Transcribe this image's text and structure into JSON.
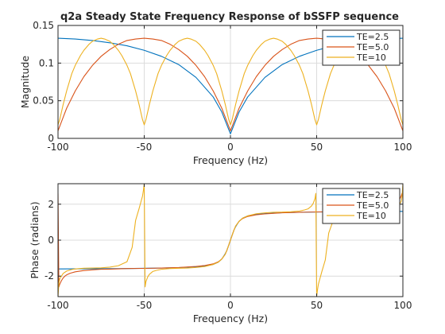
{
  "chart_data": [
    {
      "type": "line",
      "title": "q2a Steady State Frequency Response of bSSFP sequence",
      "xlabel": "Frequency (Hz)",
      "ylabel": "Magnitude",
      "xlim": [
        -100,
        100
      ],
      "ylim": [
        0,
        0.15
      ],
      "xticks": [
        -100,
        -50,
        0,
        50,
        100
      ],
      "yticks": [
        0,
        0.05,
        0.1,
        0.15
      ],
      "ytick_labels": [
        "0",
        "0.05",
        "0.1",
        "0.15"
      ],
      "grid": true,
      "legend_position": "top-right",
      "series": [
        {
          "name": "TE=2.5",
          "color": "#0072bd",
          "x": [
            -100,
            -90,
            -80,
            -70,
            -60,
            -50,
            -40,
            -30,
            -20,
            -10,
            -5,
            0,
            5,
            10,
            20,
            30,
            40,
            50,
            60,
            70,
            80,
            90,
            100
          ],
          "values": [
            0.133,
            0.132,
            0.13,
            0.127,
            0.123,
            0.117,
            0.109,
            0.098,
            0.081,
            0.055,
            0.035,
            0.006,
            0.035,
            0.055,
            0.081,
            0.098,
            0.109,
            0.117,
            0.123,
            0.127,
            0.13,
            0.132,
            0.133
          ]
        },
        {
          "name": "TE=5.0",
          "color": "#d95319",
          "x": [
            -100,
            -97,
            -95,
            -90,
            -85,
            -80,
            -75,
            -70,
            -65,
            -60,
            -55,
            -50,
            -45,
            -40,
            -35,
            -30,
            -25,
            -20,
            -15,
            -10,
            -5,
            -2,
            0,
            2,
            5,
            10,
            15,
            20,
            25,
            30,
            35,
            40,
            45,
            50,
            55,
            60,
            65,
            70,
            75,
            80,
            85,
            90,
            95,
            97,
            100
          ],
          "values": [
            0.01,
            0.028,
            0.04,
            0.063,
            0.082,
            0.097,
            0.109,
            0.118,
            0.125,
            0.13,
            0.132,
            0.133,
            0.132,
            0.13,
            0.125,
            0.118,
            0.109,
            0.097,
            0.082,
            0.063,
            0.04,
            0.022,
            0.01,
            0.022,
            0.04,
            0.063,
            0.082,
            0.097,
            0.109,
            0.118,
            0.125,
            0.13,
            0.132,
            0.133,
            0.132,
            0.13,
            0.125,
            0.118,
            0.109,
            0.097,
            0.082,
            0.063,
            0.04,
            0.028,
            0.01
          ]
        },
        {
          "name": "TE=10",
          "color": "#edb120",
          "x": [
            -100,
            -99,
            -97,
            -95,
            -92,
            -90,
            -87,
            -85,
            -82,
            -80,
            -77,
            -75,
            -73,
            -70,
            -68,
            -65,
            -63,
            -60,
            -58,
            -55,
            -53,
            -51,
            -50,
            -49,
            -47,
            -45,
            -42,
            -40,
            -37,
            -35,
            -32,
            -30,
            -27,
            -25,
            -23,
            -20,
            -18,
            -15,
            -13,
            -10,
            -8,
            -5,
            -3,
            -1,
            0,
            1,
            3,
            5,
            8,
            10,
            13,
            15,
            18,
            20,
            23,
            25,
            27,
            30,
            32,
            35,
            37,
            40,
            42,
            45,
            47,
            49,
            50,
            51,
            53,
            55,
            58,
            60,
            63,
            65,
            68,
            70,
            73,
            75,
            77,
            80,
            82,
            85,
            87,
            90,
            92,
            95,
            97,
            99,
            100
          ],
          "values": [
            0.018,
            0.025,
            0.045,
            0.063,
            0.086,
            0.097,
            0.11,
            0.117,
            0.125,
            0.129,
            0.132,
            0.133,
            0.132,
            0.129,
            0.125,
            0.117,
            0.11,
            0.097,
            0.086,
            0.063,
            0.045,
            0.025,
            0.018,
            0.025,
            0.045,
            0.063,
            0.086,
            0.097,
            0.11,
            0.117,
            0.125,
            0.129,
            0.132,
            0.133,
            0.132,
            0.129,
            0.125,
            0.117,
            0.11,
            0.097,
            0.086,
            0.063,
            0.045,
            0.025,
            0.018,
            0.025,
            0.045,
            0.063,
            0.086,
            0.097,
            0.11,
            0.117,
            0.125,
            0.129,
            0.132,
            0.133,
            0.132,
            0.129,
            0.125,
            0.117,
            0.11,
            0.097,
            0.086,
            0.063,
            0.045,
            0.025,
            0.018,
            0.025,
            0.045,
            0.063,
            0.086,
            0.097,
            0.11,
            0.117,
            0.125,
            0.129,
            0.132,
            0.133,
            0.132,
            0.129,
            0.125,
            0.117,
            0.11,
            0.097,
            0.086,
            0.063,
            0.045,
            0.025,
            0.018
          ]
        }
      ]
    },
    {
      "type": "line",
      "title": "",
      "xlabel": "Frequency (Hz)",
      "ylabel": "Phase (radians)",
      "xlim": [
        -100,
        100
      ],
      "ylim": [
        -3.14,
        3.14
      ],
      "xticks": [
        -100,
        -50,
        0,
        50,
        100
      ],
      "yticks": [
        -2,
        0,
        2
      ],
      "ytick_labels": [
        "-2",
        "0",
        "2"
      ],
      "grid": true,
      "legend_position": "top-right",
      "series": [
        {
          "name": "TE=2.5",
          "color": "#0072bd",
          "x": [
            -100,
            -80,
            -60,
            -40,
            -30,
            -20,
            -15,
            -10,
            -7,
            -5,
            -3,
            -2,
            -1,
            0,
            1,
            2,
            3,
            5,
            7,
            10,
            15,
            20,
            30,
            40,
            60,
            80,
            100
          ],
          "values": [
            -1.6,
            -1.59,
            -1.58,
            -1.55,
            -1.53,
            -1.48,
            -1.44,
            -1.35,
            -1.22,
            -1.05,
            -0.75,
            -0.55,
            -0.28,
            0,
            0.28,
            0.55,
            0.75,
            1.05,
            1.22,
            1.35,
            1.44,
            1.48,
            1.53,
            1.55,
            1.58,
            1.59,
            1.6
          ]
        },
        {
          "name": "TE=5.0",
          "color": "#d95319",
          "x": [
            -100,
            -99.5,
            -99,
            -98,
            -97,
            -96,
            -95,
            -93,
            -90,
            -85,
            -80,
            -75,
            -70,
            -60,
            -50,
            -40,
            -30,
            -20,
            -15,
            -10,
            -7,
            -5,
            -3,
            -2,
            -1,
            0,
            1,
            2,
            3,
            5,
            7,
            10,
            15,
            20,
            30,
            40,
            50,
            60,
            70,
            75,
            80,
            85,
            90,
            93,
            95,
            96,
            97,
            98,
            99,
            99.5,
            100
          ],
          "values": [
            2.6,
            -2.6,
            -2.45,
            -2.25,
            -2.1,
            -2.0,
            -1.93,
            -1.84,
            -1.76,
            -1.69,
            -1.65,
            -1.62,
            -1.61,
            -1.58,
            -1.57,
            -1.55,
            -1.52,
            -1.46,
            -1.41,
            -1.32,
            -1.2,
            -1.05,
            -0.78,
            -0.55,
            -0.28,
            0,
            0.28,
            0.55,
            0.78,
            1.05,
            1.2,
            1.32,
            1.41,
            1.46,
            1.52,
            1.55,
            1.57,
            1.58,
            1.61,
            1.62,
            1.65,
            1.69,
            1.76,
            1.84,
            1.93,
            2.0,
            2.1,
            2.25,
            2.45,
            2.6,
            2.6
          ]
        },
        {
          "name": "TE=10",
          "color": "#edb120",
          "x": [
            -100,
            -99.5,
            -99,
            -97,
            -95,
            -92,
            -90,
            -85,
            -80,
            -75,
            -70,
            -65,
            -60,
            -57,
            -55,
            -53,
            -52,
            -51,
            -50.5,
            -50,
            -49.5,
            -49,
            -48,
            -47,
            -45,
            -43,
            -40,
            -35,
            -30,
            -25,
            -20,
            -15,
            -10,
            -7,
            -5,
            -3,
            -2,
            -1,
            0,
            1,
            2,
            3,
            5,
            7,
            10,
            15,
            20,
            25,
            30,
            35,
            40,
            43,
            45,
            47,
            48,
            49,
            49.5,
            50,
            50.5,
            51,
            52,
            53,
            55,
            57,
            60,
            65,
            70,
            75,
            80,
            85,
            90,
            92,
            95,
            97,
            99,
            99.5,
            100
          ],
          "values": [
            -3.14,
            -2.4,
            -2.15,
            -1.85,
            -1.72,
            -1.63,
            -1.6,
            -1.56,
            -1.55,
            -1.54,
            -1.5,
            -1.42,
            -1.2,
            -0.4,
            1.1,
            1.75,
            2.1,
            2.45,
            2.75,
            3.14,
            -2.6,
            -2.3,
            -2.05,
            -1.9,
            -1.74,
            -1.68,
            -1.62,
            -1.58,
            -1.56,
            -1.55,
            -1.52,
            -1.47,
            -1.35,
            -1.22,
            -1.05,
            -0.78,
            -0.55,
            -0.28,
            0,
            0.28,
            0.55,
            0.78,
            1.05,
            1.22,
            1.35,
            1.47,
            1.52,
            1.55,
            1.56,
            1.58,
            1.62,
            1.68,
            1.74,
            1.9,
            2.05,
            2.3,
            2.6,
            -3.14,
            -2.75,
            -2.45,
            -2.1,
            -1.75,
            -1.1,
            0.4,
            1.2,
            1.42,
            1.5,
            1.54,
            1.55,
            1.56,
            1.6,
            1.63,
            1.72,
            1.85,
            2.15,
            2.4,
            3.14
          ]
        }
      ]
    }
  ]
}
